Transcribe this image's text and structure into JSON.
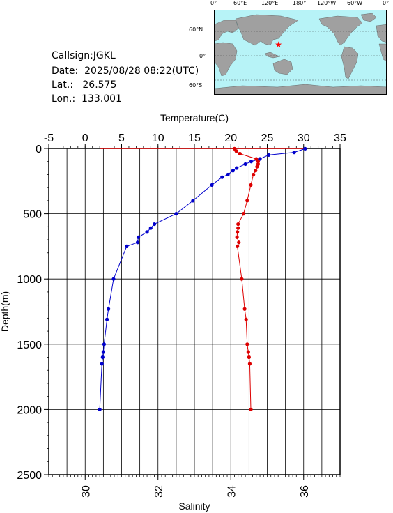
{
  "station": {
    "callsign": "Callsign:JGKL",
    "date": "Date:  2025/08/28 08:22(UTC)",
    "lat": "Lat.:   26.575",
    "lon": "Lon.:  133.001"
  },
  "map": {
    "lon_labels": [
      "0°",
      "60°E",
      "120°E",
      "180°",
      "120°W",
      "60°W",
      "0°"
    ],
    "lat_labels": [
      "60°N",
      "0°",
      "60°S"
    ],
    "marker_lon": 133.001,
    "marker_lat": 26.575,
    "ocean_color": "#b7f3f7",
    "land_color": "#a0a0a0",
    "marker_color": "#ff0000"
  },
  "chart_data": {
    "type": "line",
    "top_axis_label": "Temperature(C)",
    "bottom_axis_label": "Salinity",
    "left_axis_label": "Depth(m)",
    "temperature_range": [
      -5,
      35
    ],
    "temperature_ticks": [
      "-5",
      "0",
      "5",
      "10",
      "15",
      "20",
      "25",
      "30",
      "35"
    ],
    "salinity_range": [
      29,
      37
    ],
    "salinity_ticks": [
      "30",
      "32",
      "34",
      "36"
    ],
    "depth_range": [
      0,
      2500
    ],
    "depth_ticks": [
      "0",
      "500",
      "1000",
      "1500",
      "2000",
      "2500"
    ],
    "series": [
      {
        "quantity": "temperature",
        "color": "#0000cc",
        "points": [
          {
            "depth": 2,
            "temp": 30.2
          },
          {
            "depth": 30,
            "temp": 28.7
          },
          {
            "depth": 50,
            "temp": 25.2
          },
          {
            "depth": 80,
            "temp": 24.0
          },
          {
            "depth": 100,
            "temp": 22.8
          },
          {
            "depth": 120,
            "temp": 22.0
          },
          {
            "depth": 150,
            "temp": 20.8
          },
          {
            "depth": 170,
            "temp": 20.3
          },
          {
            "depth": 200,
            "temp": 19.6
          },
          {
            "depth": 220,
            "temp": 18.8
          },
          {
            "depth": 280,
            "temp": 17.4
          },
          {
            "depth": 400,
            "temp": 14.8
          },
          {
            "depth": 500,
            "temp": 12.5
          },
          {
            "depth": 580,
            "temp": 9.5
          },
          {
            "depth": 610,
            "temp": 9.0
          },
          {
            "depth": 640,
            "temp": 8.5
          },
          {
            "depth": 680,
            "temp": 7.3
          },
          {
            "depth": 720,
            "temp": 7.2
          },
          {
            "depth": 750,
            "temp": 5.7
          },
          {
            "depth": 1000,
            "temp": 3.9
          },
          {
            "depth": 1230,
            "temp": 3.2
          },
          {
            "depth": 1310,
            "temp": 3.0
          },
          {
            "depth": 1500,
            "temp": 2.6
          },
          {
            "depth": 1560,
            "temp": 2.5
          },
          {
            "depth": 1600,
            "temp": 2.4
          },
          {
            "depth": 1650,
            "temp": 2.3
          },
          {
            "depth": 2000,
            "temp": 2.0
          }
        ]
      },
      {
        "quantity": "salinity",
        "color": "#dd0000",
        "points": [
          {
            "depth": 2,
            "sal": 34.1
          },
          {
            "depth": 20,
            "sal": 34.15
          },
          {
            "depth": 40,
            "sal": 34.25
          },
          {
            "depth": 80,
            "sal": 34.7
          },
          {
            "depth": 100,
            "sal": 34.75
          },
          {
            "depth": 120,
            "sal": 34.75
          },
          {
            "depth": 140,
            "sal": 34.72
          },
          {
            "depth": 170,
            "sal": 34.68
          },
          {
            "depth": 200,
            "sal": 34.62
          },
          {
            "depth": 280,
            "sal": 34.55
          },
          {
            "depth": 400,
            "sal": 34.45
          },
          {
            "depth": 500,
            "sal": 34.35
          },
          {
            "depth": 580,
            "sal": 34.2
          },
          {
            "depth": 610,
            "sal": 34.2
          },
          {
            "depth": 640,
            "sal": 34.18
          },
          {
            "depth": 680,
            "sal": 34.17
          },
          {
            "depth": 720,
            "sal": 34.22
          },
          {
            "depth": 750,
            "sal": 34.18
          },
          {
            "depth": 1000,
            "sal": 34.3
          },
          {
            "depth": 1230,
            "sal": 34.38
          },
          {
            "depth": 1310,
            "sal": 34.42
          },
          {
            "depth": 1500,
            "sal": 34.45
          },
          {
            "depth": 1560,
            "sal": 34.48
          },
          {
            "depth": 1600,
            "sal": 34.5
          },
          {
            "depth": 1650,
            "sal": 34.52
          },
          {
            "depth": 2000,
            "sal": 34.55
          }
        ]
      }
    ],
    "surface_line": {
      "depth": 0,
      "temp_from": 2.0,
      "temp_to": 30.2,
      "color": "#dd0000"
    }
  }
}
